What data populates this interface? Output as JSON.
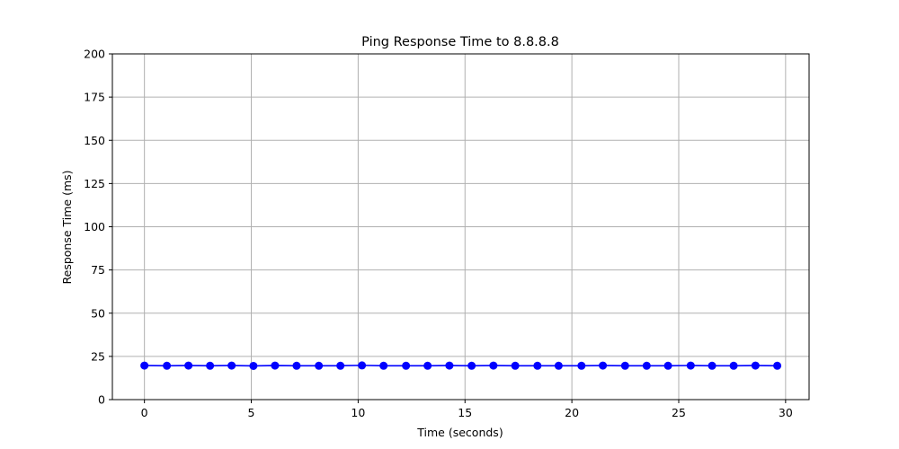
{
  "chart_data": {
    "type": "line",
    "title": "Ping Response Time to 8.8.8.8",
    "xlabel": "Time (seconds)",
    "ylabel": "Response Time (ms)",
    "xlim": [
      -1.5,
      31.1
    ],
    "ylim": [
      0,
      200
    ],
    "xticks": [
      0,
      5,
      10,
      15,
      20,
      25,
      30
    ],
    "yticks": [
      0,
      25,
      50,
      75,
      100,
      125,
      150,
      175,
      200
    ],
    "grid": true,
    "series": [
      {
        "color": "#0000ff",
        "marker": "circle",
        "x": [
          0.0,
          1.05,
          2.06,
          3.07,
          4.08,
          5.1,
          6.11,
          7.12,
          8.16,
          9.17,
          10.18,
          11.19,
          12.24,
          13.25,
          14.27,
          15.31,
          16.33,
          17.35,
          18.39,
          19.38,
          20.45,
          21.45,
          22.49,
          23.5,
          24.5,
          25.56,
          26.56,
          27.57,
          28.59,
          29.61
        ],
        "y": [
          19.7,
          19.6,
          19.7,
          19.6,
          19.7,
          19.5,
          19.7,
          19.6,
          19.6,
          19.6,
          19.8,
          19.6,
          19.6,
          19.6,
          19.7,
          19.6,
          19.7,
          19.6,
          19.6,
          19.6,
          19.6,
          19.7,
          19.6,
          19.6,
          19.6,
          19.7,
          19.6,
          19.6,
          19.7,
          19.6
        ]
      }
    ]
  }
}
